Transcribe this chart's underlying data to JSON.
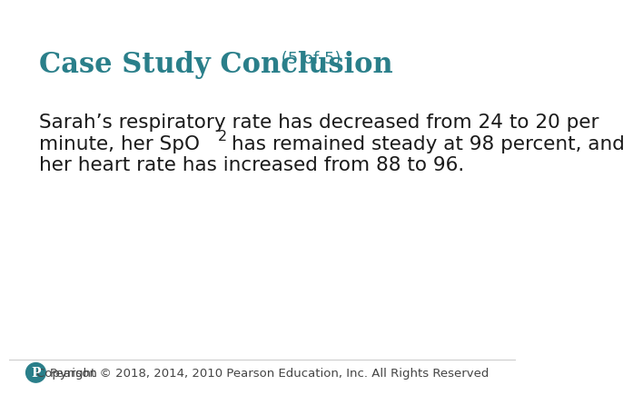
{
  "title_main": "Case Study Conclusion",
  "title_sub": " (5 of 5)",
  "title_color": "#2a7f8a",
  "body_line1": "Sarah’s respiratory rate has decreased from 24 to 20 per",
  "body_line2_pre": "minute, her SpO",
  "body_line2_sub": "2",
  "body_line2_post": " has remained steady at 98 percent, and",
  "body_line3": "her heart rate has increased from 88 to 96.",
  "footer_text": "Copyright © 2018, 2014, 2010 Pearson Education, Inc. All Rights Reserved",
  "pearson_label": "Pearson",
  "background_color": "#ffffff",
  "text_color": "#1a1a1a",
  "footer_color": "#444444",
  "teal_color": "#2a7f8a",
  "title_fontsize": 22,
  "subtitle_fontsize": 13,
  "body_fontsize": 15.5,
  "footer_fontsize": 9.5
}
